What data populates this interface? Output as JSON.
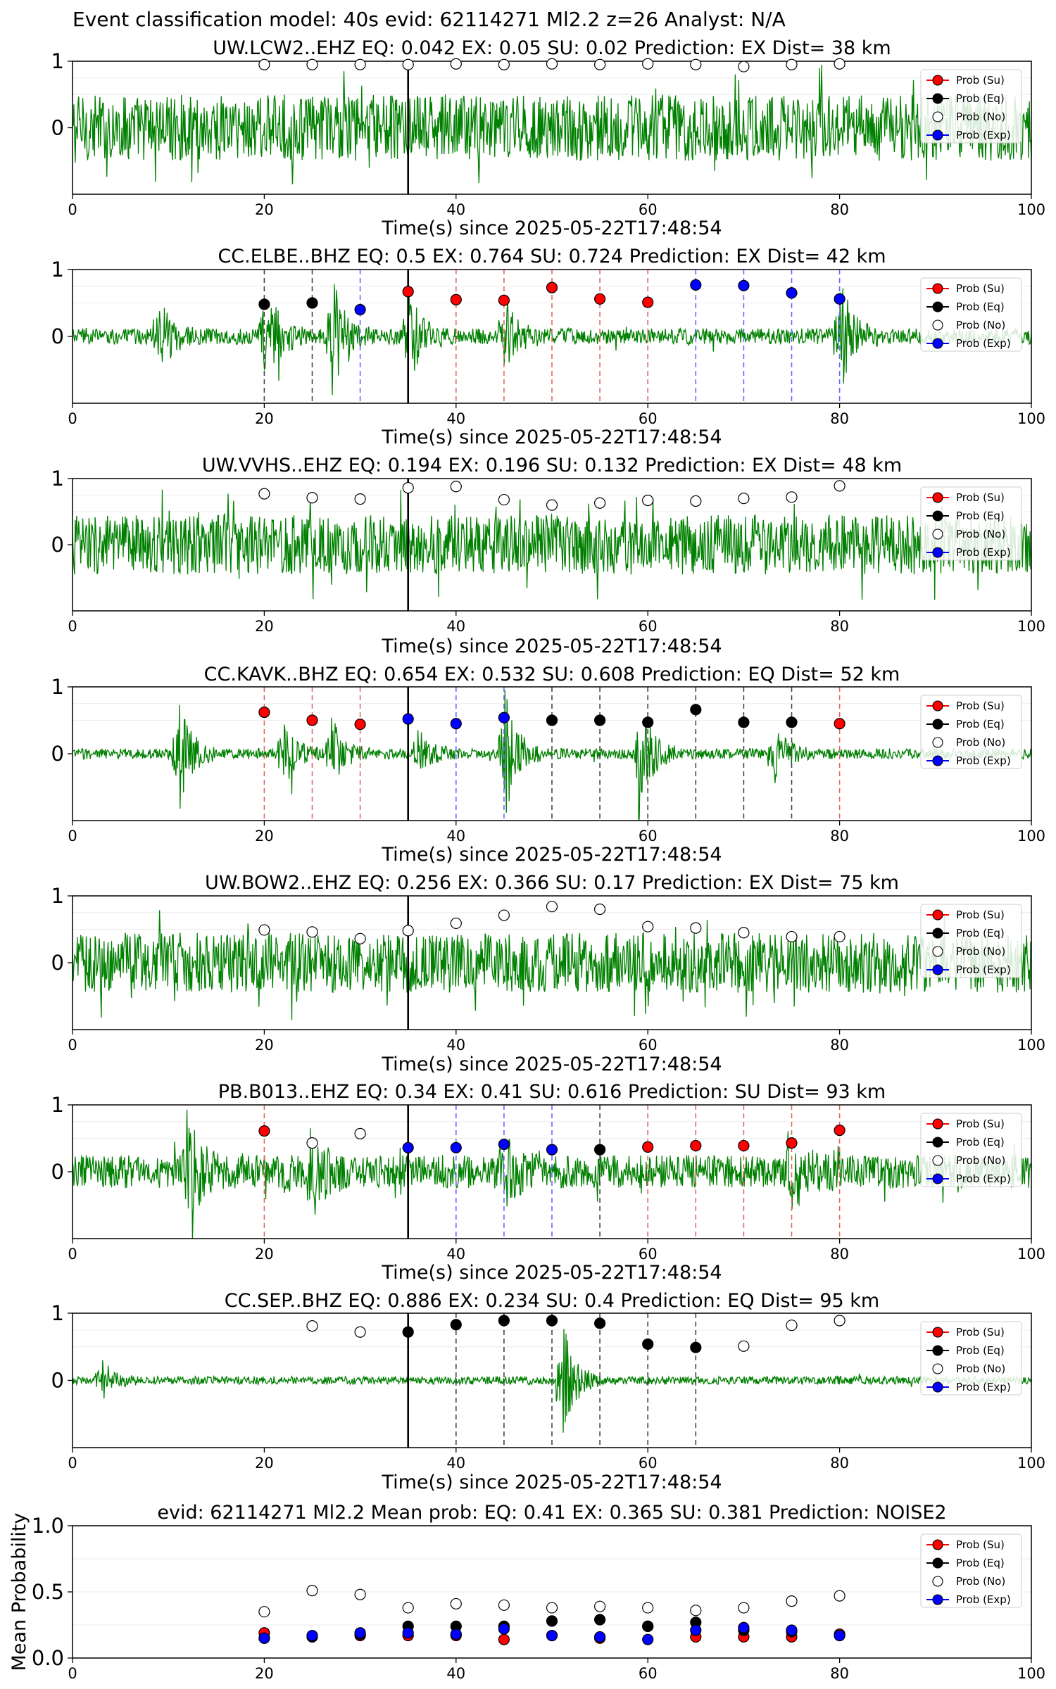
{
  "suptitle": "Event classification model: 40s evid: 62114271 Ml2.2 z=26 Analyst: N/A",
  "colors": {
    "signal": "#008000",
    "su": "#ff0000",
    "eq": "#000000",
    "no": "#ffffff",
    "exp": "#0000ff",
    "red_line": "#e06666",
    "blue_line": "#6666ff",
    "black_line": "#444444"
  },
  "legend": [
    "Prob (Su)",
    "Prob (Eq)",
    "Prob (No)",
    "Prob (Exp)"
  ],
  "chart_data": [
    {
      "type": "scatter",
      "title": "UW.LCW2..EHZ   EQ: 0.042   EX: 0.05   SU: 0.02   Prediction: EX    Dist= 38 km",
      "xlabel": "Time(s) since 2025-05-22T17:48:54",
      "xlim": [
        0,
        100
      ],
      "ylim": [
        -1,
        1
      ],
      "xticks": [
        "0",
        "20",
        "40",
        "60",
        "80",
        "100"
      ],
      "yticks": [
        "0",
        "1"
      ],
      "waveform": {
        "amplitude": 0.5,
        "spikiness": 0.35,
        "bursts": []
      },
      "event_marker_x": 35,
      "x": [
        20,
        25,
        30,
        35,
        40,
        45,
        50,
        55,
        60,
        65,
        70,
        75,
        80
      ],
      "points": [
        {
          "x": 20,
          "y": 0.95,
          "class": "No"
        },
        {
          "x": 25,
          "y": 0.95,
          "class": "No"
        },
        {
          "x": 30,
          "y": 0.95,
          "class": "No"
        },
        {
          "x": 35,
          "y": 0.95,
          "class": "No"
        },
        {
          "x": 40,
          "y": 0.96,
          "class": "No"
        },
        {
          "x": 45,
          "y": 0.95,
          "class": "No"
        },
        {
          "x": 50,
          "y": 0.96,
          "class": "No"
        },
        {
          "x": 55,
          "y": 0.95,
          "class": "No"
        },
        {
          "x": 60,
          "y": 0.96,
          "class": "No"
        },
        {
          "x": 65,
          "y": 0.95,
          "class": "No"
        },
        {
          "x": 70,
          "y": 0.92,
          "class": "No"
        },
        {
          "x": 75,
          "y": 0.95,
          "class": "No"
        },
        {
          "x": 80,
          "y": 0.96,
          "class": "No"
        }
      ]
    },
    {
      "type": "scatter",
      "title": "CC.ELBE..BHZ   EQ: 0.5   EX: 0.764   SU: 0.724   Prediction: EX    Dist= 42 km",
      "xlabel": "Time(s) since 2025-05-22T17:48:54",
      "xlim": [
        0,
        100
      ],
      "ylim": [
        -1,
        1
      ],
      "xticks": [
        "0",
        "20",
        "40",
        "60",
        "80",
        "100"
      ],
      "yticks": [
        "0",
        "1"
      ],
      "waveform": {
        "amplitude": 0.12,
        "spikiness": 0.1,
        "bursts": [
          [
            9,
            0.6
          ],
          [
            20,
            0.9
          ],
          [
            27,
            0.9
          ],
          [
            35,
            0.7
          ],
          [
            45,
            0.55
          ],
          [
            80,
            0.9
          ]
        ]
      },
      "event_marker_x": 35,
      "points": [
        {
          "x": 20,
          "y": 0.48,
          "class": "Eq"
        },
        {
          "x": 25,
          "y": 0.5,
          "class": "Eq"
        },
        {
          "x": 30,
          "y": 0.4,
          "class": "Exp"
        },
        {
          "x": 35,
          "y": 0.67,
          "class": "Su"
        },
        {
          "x": 40,
          "y": 0.55,
          "class": "Su"
        },
        {
          "x": 45,
          "y": 0.54,
          "class": "Su"
        },
        {
          "x": 50,
          "y": 0.73,
          "class": "Su"
        },
        {
          "x": 55,
          "y": 0.56,
          "class": "Su"
        },
        {
          "x": 60,
          "y": 0.51,
          "class": "Su"
        },
        {
          "x": 65,
          "y": 0.77,
          "class": "Exp"
        },
        {
          "x": 70,
          "y": 0.76,
          "class": "Exp"
        },
        {
          "x": 75,
          "y": 0.65,
          "class": "Exp"
        },
        {
          "x": 80,
          "y": 0.56,
          "class": "Exp"
        }
      ]
    },
    {
      "type": "scatter",
      "title": "UW.VVHS..EHZ   EQ: 0.194   EX: 0.196   SU: 0.132   Prediction: EX    Dist= 48 km",
      "xlabel": "Time(s) since 2025-05-22T17:48:54",
      "xlim": [
        0,
        100
      ],
      "ylim": [
        -1,
        1
      ],
      "xticks": [
        "0",
        "20",
        "40",
        "60",
        "80",
        "100"
      ],
      "yticks": [
        "0",
        "1"
      ],
      "waveform": {
        "amplitude": 0.45,
        "spikiness": 0.3,
        "bursts": []
      },
      "event_marker_x": 35,
      "points": [
        {
          "x": 20,
          "y": 0.77,
          "class": "No"
        },
        {
          "x": 25,
          "y": 0.71,
          "class": "No"
        },
        {
          "x": 30,
          "y": 0.69,
          "class": "No"
        },
        {
          "x": 35,
          "y": 0.86,
          "class": "No"
        },
        {
          "x": 40,
          "y": 0.88,
          "class": "No"
        },
        {
          "x": 45,
          "y": 0.68,
          "class": "No"
        },
        {
          "x": 50,
          "y": 0.6,
          "class": "No"
        },
        {
          "x": 55,
          "y": 0.63,
          "class": "No"
        },
        {
          "x": 60,
          "y": 0.67,
          "class": "No"
        },
        {
          "x": 65,
          "y": 0.66,
          "class": "No"
        },
        {
          "x": 70,
          "y": 0.7,
          "class": "No"
        },
        {
          "x": 75,
          "y": 0.72,
          "class": "No"
        },
        {
          "x": 80,
          "y": 0.89,
          "class": "No"
        }
      ]
    },
    {
      "type": "scatter",
      "title": "CC.KAVK..BHZ   EQ: 0.654   EX: 0.532   SU: 0.608   Prediction: EQ    Dist= 52 km",
      "xlabel": "Time(s) since 2025-05-22T17:48:54",
      "xlim": [
        0,
        100
      ],
      "ylim": [
        -1,
        1
      ],
      "xticks": [
        "0",
        "20",
        "40",
        "60",
        "80",
        "100"
      ],
      "yticks": [
        "0",
        "1"
      ],
      "waveform": {
        "amplitude": 0.08,
        "spikiness": 0.05,
        "bursts": [
          [
            11,
            0.9
          ],
          [
            22,
            0.5
          ],
          [
            27,
            0.6
          ],
          [
            36,
            0.4
          ],
          [
            45,
            1.0
          ],
          [
            59,
            1.0
          ],
          [
            73,
            0.5
          ]
        ]
      },
      "event_marker_x": 35,
      "points": [
        {
          "x": 20,
          "y": 0.62,
          "class": "Su"
        },
        {
          "x": 25,
          "y": 0.5,
          "class": "Su"
        },
        {
          "x": 30,
          "y": 0.44,
          "class": "Su"
        },
        {
          "x": 35,
          "y": 0.52,
          "class": "Exp"
        },
        {
          "x": 40,
          "y": 0.45,
          "class": "Exp"
        },
        {
          "x": 45,
          "y": 0.54,
          "class": "Exp"
        },
        {
          "x": 50,
          "y": 0.5,
          "class": "Eq"
        },
        {
          "x": 55,
          "y": 0.5,
          "class": "Eq"
        },
        {
          "x": 60,
          "y": 0.47,
          "class": "Eq"
        },
        {
          "x": 65,
          "y": 0.66,
          "class": "Eq"
        },
        {
          "x": 70,
          "y": 0.47,
          "class": "Eq"
        },
        {
          "x": 75,
          "y": 0.47,
          "class": "Eq"
        },
        {
          "x": 80,
          "y": 0.45,
          "class": "Su"
        }
      ]
    },
    {
      "type": "scatter",
      "title": "UW.BOW2..EHZ   EQ: 0.256   EX: 0.366   SU: 0.17   Prediction: EX    Dist= 75 km",
      "xlabel": "Time(s) since 2025-05-22T17:48:54",
      "xlim": [
        0,
        100
      ],
      "ylim": [
        -1,
        1
      ],
      "xticks": [
        "0",
        "20",
        "40",
        "60",
        "80",
        "100"
      ],
      "yticks": [
        "0",
        "1"
      ],
      "waveform": {
        "amplitude": 0.45,
        "spikiness": 0.3,
        "bursts": []
      },
      "event_marker_x": 35,
      "points": [
        {
          "x": 20,
          "y": 0.49,
          "class": "No"
        },
        {
          "x": 25,
          "y": 0.46,
          "class": "No"
        },
        {
          "x": 30,
          "y": 0.36,
          "class": "No"
        },
        {
          "x": 35,
          "y": 0.48,
          "class": "No"
        },
        {
          "x": 40,
          "y": 0.59,
          "class": "No"
        },
        {
          "x": 45,
          "y": 0.71,
          "class": "No"
        },
        {
          "x": 50,
          "y": 0.84,
          "class": "No"
        },
        {
          "x": 55,
          "y": 0.8,
          "class": "No"
        },
        {
          "x": 60,
          "y": 0.54,
          "class": "No"
        },
        {
          "x": 65,
          "y": 0.52,
          "class": "No"
        },
        {
          "x": 70,
          "y": 0.45,
          "class": "No"
        },
        {
          "x": 75,
          "y": 0.39,
          "class": "No"
        },
        {
          "x": 80,
          "y": 0.39,
          "class": "No"
        }
      ]
    },
    {
      "type": "scatter",
      "title": "PB.B013..EHZ   EQ: 0.34   EX: 0.41   SU: 0.616   Prediction: SU    Dist= 93 km",
      "xlabel": "Time(s) since 2025-05-22T17:48:54",
      "xlim": [
        0,
        100
      ],
      "ylim": [
        -1,
        1
      ],
      "xticks": [
        "0",
        "20",
        "40",
        "60",
        "80",
        "100"
      ],
      "yticks": [
        "0",
        "1"
      ],
      "waveform": {
        "amplitude": 0.25,
        "spikiness": 0.25,
        "bursts": [
          [
            12,
            0.8
          ],
          [
            25,
            0.6
          ],
          [
            45,
            0.5
          ],
          [
            75,
            0.5
          ]
        ]
      },
      "event_marker_x": 35,
      "points": [
        {
          "x": 20,
          "y": 0.61,
          "class": "Su"
        },
        {
          "x": 25,
          "y": 0.43,
          "class": "No"
        },
        {
          "x": 30,
          "y": 0.57,
          "class": "No"
        },
        {
          "x": 35,
          "y": 0.36,
          "class": "Exp"
        },
        {
          "x": 40,
          "y": 0.36,
          "class": "Exp"
        },
        {
          "x": 45,
          "y": 0.41,
          "class": "Exp"
        },
        {
          "x": 50,
          "y": 0.33,
          "class": "Exp"
        },
        {
          "x": 55,
          "y": 0.33,
          "class": "Eq"
        },
        {
          "x": 60,
          "y": 0.37,
          "class": "Su"
        },
        {
          "x": 65,
          "y": 0.39,
          "class": "Su"
        },
        {
          "x": 70,
          "y": 0.39,
          "class": "Su"
        },
        {
          "x": 75,
          "y": 0.43,
          "class": "Su"
        },
        {
          "x": 80,
          "y": 0.62,
          "class": "Su"
        }
      ]
    },
    {
      "type": "scatter",
      "title": "CC.SEP..BHZ   EQ: 0.886   EX: 0.234   SU: 0.4   Prediction: EQ    Dist= 95 km",
      "xlabel": "Time(s) since 2025-05-22T17:48:54",
      "xlim": [
        0,
        100
      ],
      "ylim": [
        -1,
        1
      ],
      "xticks": [
        "0",
        "20",
        "40",
        "60",
        "80",
        "100"
      ],
      "yticks": [
        "0",
        "1"
      ],
      "waveform": {
        "amplitude": 0.06,
        "spikiness": 0.03,
        "bursts": [
          [
            3,
            0.3
          ],
          [
            51,
            1.0
          ]
        ]
      },
      "event_marker_x": 35,
      "points": [
        {
          "x": 25,
          "y": 0.81,
          "class": "No"
        },
        {
          "x": 30,
          "y": 0.72,
          "class": "No"
        },
        {
          "x": 35,
          "y": 0.72,
          "class": "Eq"
        },
        {
          "x": 40,
          "y": 0.83,
          "class": "Eq"
        },
        {
          "x": 45,
          "y": 0.89,
          "class": "Eq"
        },
        {
          "x": 50,
          "y": 0.89,
          "class": "Eq"
        },
        {
          "x": 55,
          "y": 0.85,
          "class": "Eq"
        },
        {
          "x": 60,
          "y": 0.54,
          "class": "Eq"
        },
        {
          "x": 65,
          "y": 0.49,
          "class": "Eq"
        },
        {
          "x": 70,
          "y": 0.51,
          "class": "No"
        },
        {
          "x": 75,
          "y": 0.82,
          "class": "No"
        },
        {
          "x": 80,
          "y": 0.89,
          "class": "No"
        }
      ]
    },
    {
      "type": "scatter",
      "title": "evid: 62114271  Ml2.2   Mean prob:   EQ: 0.41   EX: 0.365   SU: 0.381   Prediction: NOISE2",
      "ylabel": "Mean Probability",
      "xlim": [
        0,
        100
      ],
      "ylim": [
        0,
        1
      ],
      "xticks": [
        "0",
        "20",
        "40",
        "60",
        "80",
        "100"
      ],
      "yticks": [
        "0.0",
        "0.5",
        "1.0"
      ],
      "x": [
        20,
        25,
        30,
        35,
        40,
        45,
        50,
        55,
        60,
        65,
        70,
        75,
        80
      ],
      "series": [
        {
          "name": "Prob (Su)",
          "class": "Su",
          "values": [
            0.19,
            0.16,
            0.17,
            0.17,
            0.17,
            0.14,
            0.17,
            0.15,
            0.24,
            0.16,
            0.16,
            0.16,
            0.18
          ]
        },
        {
          "name": "Prob (Eq)",
          "class": "Eq",
          "values": [
            0.15,
            0.16,
            0.18,
            0.24,
            0.24,
            0.24,
            0.28,
            0.29,
            0.24,
            0.27,
            0.21,
            0.2,
            0.17
          ]
        },
        {
          "name": "Prob (No)",
          "class": "No",
          "values": [
            0.35,
            0.51,
            0.48,
            0.38,
            0.41,
            0.4,
            0.38,
            0.39,
            0.38,
            0.36,
            0.38,
            0.43,
            0.47
          ]
        },
        {
          "name": "Prob (Exp)",
          "class": "Exp",
          "values": [
            0.15,
            0.17,
            0.19,
            0.19,
            0.18,
            0.22,
            0.17,
            0.16,
            0.14,
            0.21,
            0.23,
            0.21,
            0.17
          ]
        }
      ]
    }
  ]
}
